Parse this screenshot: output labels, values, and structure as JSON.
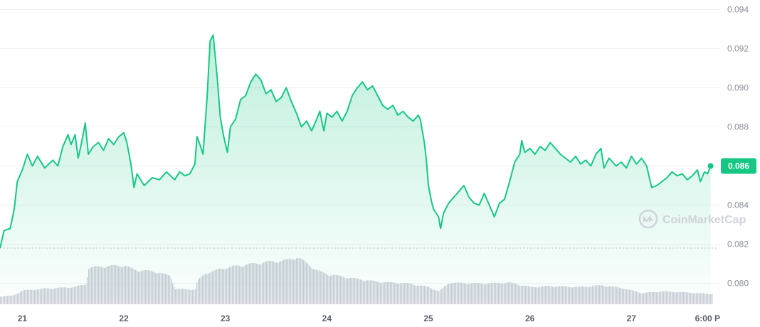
{
  "chart_data": {
    "type": "area",
    "colors": {
      "line": "#16c784",
      "volume": "#c9ccd6",
      "tag_bg": "#16c784",
      "grid": "#eef0f3"
    },
    "ylim": [
      0.0792,
      0.0942
    ],
    "y_ticks": [
      "0.094",
      "0.092",
      "0.090",
      "0.088",
      "0.086",
      "0.084",
      "0.082",
      "0.080"
    ],
    "y_tick_values": [
      0.094,
      0.092,
      0.09,
      0.088,
      0.086,
      0.084,
      0.082,
      0.08
    ],
    "x_ticks": [
      "21",
      "22",
      "23",
      "24",
      "25",
      "26",
      "27",
      "6:00 P"
    ],
    "x_tick_days": [
      0,
      1,
      2,
      3,
      4,
      5,
      6,
      6.75
    ],
    "x_domain_days": [
      -0.22,
      6.86
    ],
    "open_price_reference": 0.0818,
    "current_price_label": "0.086",
    "watermark": "CoinMarketCap",
    "series": [
      {
        "points": [
          [
            -0.22,
            0.0818
          ],
          [
            -0.18,
            0.0827
          ],
          [
            -0.12,
            0.0828
          ],
          [
            -0.08,
            0.0838
          ],
          [
            -0.05,
            0.0852
          ],
          [
            0.0,
            0.0858
          ],
          [
            0.05,
            0.0866
          ],
          [
            0.1,
            0.086
          ],
          [
            0.15,
            0.0865
          ],
          [
            0.22,
            0.0859
          ],
          [
            0.3,
            0.0863
          ],
          [
            0.35,
            0.086
          ],
          [
            0.4,
            0.087
          ],
          [
            0.45,
            0.0876
          ],
          [
            0.48,
            0.0871
          ],
          [
            0.52,
            0.0876
          ],
          [
            0.55,
            0.0864
          ],
          [
            0.58,
            0.0871
          ],
          [
            0.62,
            0.0882
          ],
          [
            0.65,
            0.0866
          ],
          [
            0.7,
            0.087
          ],
          [
            0.75,
            0.0872
          ],
          [
            0.8,
            0.0868
          ],
          [
            0.85,
            0.0874
          ],
          [
            0.9,
            0.0871
          ],
          [
            0.95,
            0.0875
          ],
          [
            1.0,
            0.0877
          ],
          [
            1.03,
            0.0872
          ],
          [
            1.07,
            0.0861
          ],
          [
            1.1,
            0.0849
          ],
          [
            1.13,
            0.0856
          ],
          [
            1.2,
            0.085
          ],
          [
            1.28,
            0.0854
          ],
          [
            1.35,
            0.0853
          ],
          [
            1.42,
            0.0857
          ],
          [
            1.5,
            0.0853
          ],
          [
            1.55,
            0.0857
          ],
          [
            1.6,
            0.0855
          ],
          [
            1.65,
            0.0856
          ],
          [
            1.7,
            0.0861
          ],
          [
            1.72,
            0.0875
          ],
          [
            1.75,
            0.0871
          ],
          [
            1.78,
            0.0866
          ],
          [
            1.82,
            0.0895
          ],
          [
            1.85,
            0.0924
          ],
          [
            1.88,
            0.0927
          ],
          [
            1.92,
            0.0905
          ],
          [
            1.95,
            0.0885
          ],
          [
            1.98,
            0.0876
          ],
          [
            2.02,
            0.0867
          ],
          [
            2.05,
            0.088
          ],
          [
            2.1,
            0.0884
          ],
          [
            2.15,
            0.0894
          ],
          [
            2.2,
            0.0896
          ],
          [
            2.25,
            0.0903
          ],
          [
            2.3,
            0.0907
          ],
          [
            2.35,
            0.0904
          ],
          [
            2.4,
            0.0897
          ],
          [
            2.45,
            0.0899
          ],
          [
            2.5,
            0.0893
          ],
          [
            2.55,
            0.0895
          ],
          [
            2.6,
            0.09
          ],
          [
            2.65,
            0.0893
          ],
          [
            2.7,
            0.0887
          ],
          [
            2.75,
            0.088
          ],
          [
            2.8,
            0.0883
          ],
          [
            2.85,
            0.0878
          ],
          [
            2.9,
            0.0884
          ],
          [
            2.93,
            0.0888
          ],
          [
            2.97,
            0.0878
          ],
          [
            3.0,
            0.0887
          ],
          [
            3.05,
            0.0885
          ],
          [
            3.1,
            0.0888
          ],
          [
            3.15,
            0.0883
          ],
          [
            3.2,
            0.0888
          ],
          [
            3.25,
            0.0896
          ],
          [
            3.3,
            0.09
          ],
          [
            3.35,
            0.0903
          ],
          [
            3.4,
            0.0899
          ],
          [
            3.45,
            0.0901
          ],
          [
            3.5,
            0.0896
          ],
          [
            3.55,
            0.0891
          ],
          [
            3.6,
            0.0889
          ],
          [
            3.65,
            0.0891
          ],
          [
            3.7,
            0.0886
          ],
          [
            3.75,
            0.0888
          ],
          [
            3.8,
            0.0885
          ],
          [
            3.85,
            0.0883
          ],
          [
            3.9,
            0.0886
          ],
          [
            3.92,
            0.0884
          ],
          [
            3.96,
            0.0872
          ],
          [
            3.98,
            0.0863
          ],
          [
            4.0,
            0.085
          ],
          [
            4.03,
            0.0842
          ],
          [
            4.05,
            0.0838
          ],
          [
            4.1,
            0.0834
          ],
          [
            4.12,
            0.0828
          ],
          [
            4.15,
            0.0836
          ],
          [
            4.2,
            0.0841
          ],
          [
            4.25,
            0.0844
          ],
          [
            4.3,
            0.0847
          ],
          [
            4.35,
            0.085
          ],
          [
            4.4,
            0.0844
          ],
          [
            4.45,
            0.0841
          ],
          [
            4.5,
            0.084
          ],
          [
            4.55,
            0.0846
          ],
          [
            4.6,
            0.084
          ],
          [
            4.65,
            0.0834
          ],
          [
            4.7,
            0.0841
          ],
          [
            4.75,
            0.0843
          ],
          [
            4.8,
            0.0852
          ],
          [
            4.85,
            0.0862
          ],
          [
            4.9,
            0.0866
          ],
          [
            4.92,
            0.0873
          ],
          [
            4.95,
            0.0867
          ],
          [
            5.0,
            0.0869
          ],
          [
            5.05,
            0.0866
          ],
          [
            5.1,
            0.087
          ],
          [
            5.15,
            0.0868
          ],
          [
            5.2,
            0.0872
          ],
          [
            5.25,
            0.0869
          ],
          [
            5.3,
            0.0866
          ],
          [
            5.35,
            0.0864
          ],
          [
            5.4,
            0.0862
          ],
          [
            5.45,
            0.0865
          ],
          [
            5.5,
            0.0861
          ],
          [
            5.55,
            0.0863
          ],
          [
            5.6,
            0.086
          ],
          [
            5.65,
            0.0866
          ],
          [
            5.7,
            0.0869
          ],
          [
            5.73,
            0.0859
          ],
          [
            5.78,
            0.0864
          ],
          [
            5.85,
            0.086
          ],
          [
            5.9,
            0.0862
          ],
          [
            5.95,
            0.0859
          ],
          [
            6.0,
            0.0865
          ],
          [
            6.05,
            0.0861
          ],
          [
            6.1,
            0.0864
          ],
          [
            6.15,
            0.086
          ],
          [
            6.2,
            0.0849
          ],
          [
            6.25,
            0.085
          ],
          [
            6.3,
            0.0852
          ],
          [
            6.35,
            0.0854
          ],
          [
            6.4,
            0.0857
          ],
          [
            6.45,
            0.0855
          ],
          [
            6.5,
            0.0856
          ],
          [
            6.55,
            0.0853
          ],
          [
            6.6,
            0.0855
          ],
          [
            6.65,
            0.0858
          ],
          [
            6.68,
            0.0852
          ],
          [
            6.72,
            0.0857
          ],
          [
            6.75,
            0.0856
          ],
          [
            6.78,
            0.086
          ]
        ]
      }
    ],
    "volume_levels": [
      [
        -0.22,
        0.18
      ],
      [
        -0.1,
        0.2
      ],
      [
        0.0,
        0.32
      ],
      [
        0.2,
        0.36
      ],
      [
        0.5,
        0.4
      ],
      [
        0.62,
        0.46
      ],
      [
        0.65,
        0.85
      ],
      [
        0.8,
        0.88
      ],
      [
        1.0,
        0.9
      ],
      [
        1.1,
        0.8
      ],
      [
        1.3,
        0.76
      ],
      [
        1.45,
        0.66
      ],
      [
        1.5,
        0.36
      ],
      [
        1.7,
        0.34
      ],
      [
        1.72,
        0.55
      ],
      [
        1.8,
        0.72
      ],
      [
        2.0,
        0.85
      ],
      [
        2.2,
        0.92
      ],
      [
        2.4,
        0.98
      ],
      [
        2.5,
        1.0
      ],
      [
        2.6,
        1.02
      ],
      [
        2.7,
        1.1
      ],
      [
        2.8,
        0.95
      ],
      [
        2.9,
        0.78
      ],
      [
        3.0,
        0.7
      ],
      [
        3.2,
        0.62
      ],
      [
        3.5,
        0.52
      ],
      [
        3.8,
        0.48
      ],
      [
        4.0,
        0.4
      ],
      [
        4.1,
        0.3
      ],
      [
        4.2,
        0.5
      ],
      [
        4.5,
        0.48
      ],
      [
        4.8,
        0.5
      ],
      [
        5.0,
        0.4
      ],
      [
        5.2,
        0.42
      ],
      [
        5.5,
        0.4
      ],
      [
        5.7,
        0.44
      ],
      [
        5.9,
        0.38
      ],
      [
        6.1,
        0.26
      ],
      [
        6.3,
        0.3
      ],
      [
        6.5,
        0.28
      ],
      [
        6.78,
        0.24
      ]
    ]
  }
}
